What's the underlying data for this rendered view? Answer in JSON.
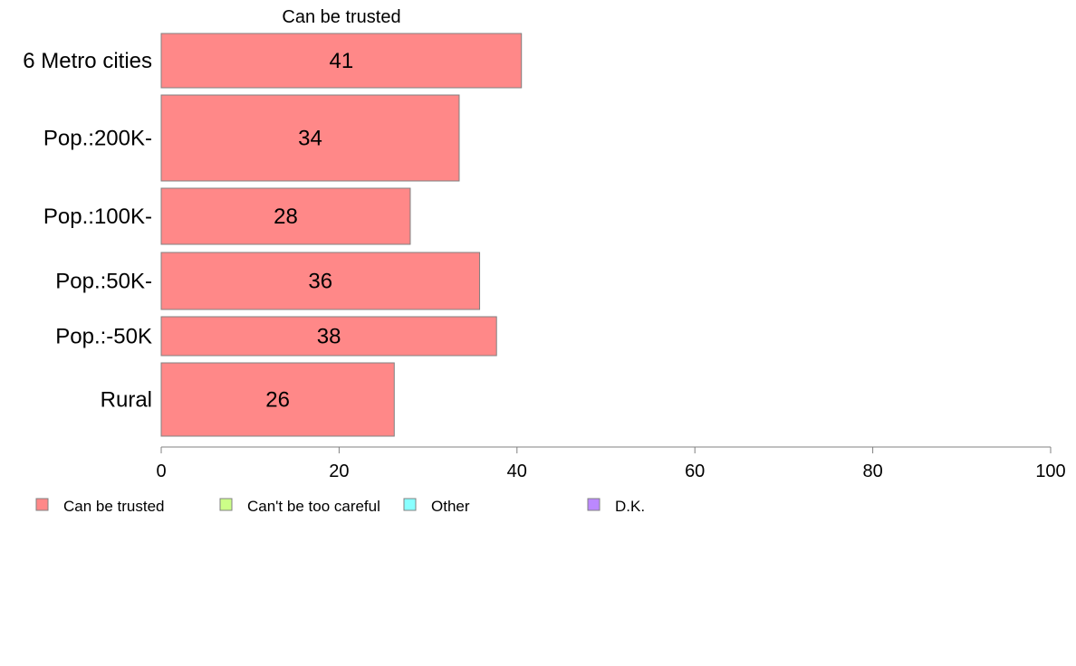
{
  "chart_data": {
    "type": "bar",
    "orientation": "horizontal",
    "stacked": true,
    "title": "Can be trusted",
    "categories": [
      "6 Metro cities",
      "Pop.:200K-",
      "Pop.:100K-",
      "Pop.:50K-",
      "Pop.:-50K",
      "Rural"
    ],
    "series": [
      {
        "name": "Can be trusted",
        "color": "#ff8888",
        "values": [
          40.5,
          33.5,
          28,
          35.8,
          37.7,
          26.2
        ],
        "labels": [
          "41",
          "34",
          "28",
          "36",
          "38",
          "26"
        ]
      }
    ],
    "xlim": [
      0,
      100
    ],
    "xticks": [
      "0",
      "20",
      "40",
      "60",
      "80",
      "100"
    ],
    "grid": false,
    "legend": {
      "placement": "bottom-left",
      "entries": [
        {
          "name": "Can be trusted",
          "color": "#ff8888"
        },
        {
          "name": "Can't be too careful",
          "color": "#ccff88"
        },
        {
          "name": "Other",
          "color": "#88ffff"
        },
        {
          "name": "D.K.",
          "color": "#bb88ff"
        }
      ]
    }
  }
}
